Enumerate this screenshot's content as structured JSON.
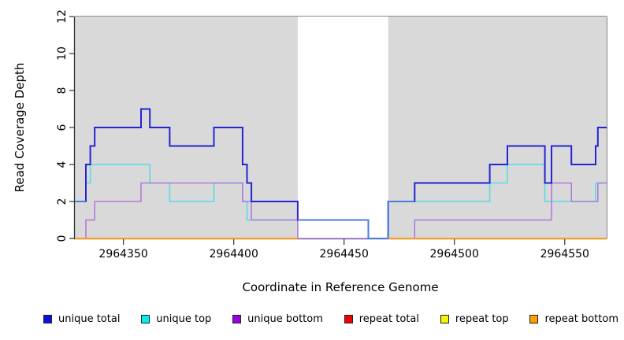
{
  "chart_data": {
    "type": "line",
    "subtype": "step",
    "title": "",
    "xlabel": "Coordinate in Reference Genome",
    "ylabel": "Read Coverage Depth",
    "xlim": [
      2964328,
      2964569
    ],
    "ylim": [
      0,
      12
    ],
    "x_ticks": [
      2964350,
      2964400,
      2964450,
      2964500,
      2964550
    ],
    "y_ticks": [
      0,
      2,
      4,
      6,
      8,
      10,
      12
    ],
    "grid": false,
    "plot_bg_color": "#d9d9d9",
    "highlight_band": {
      "x_start": 2964429,
      "x_end": 2964470,
      "color": "#ffffff"
    },
    "overlap_line_color": "#4b7ae4",
    "axis_color": "#2f2f2f",
    "box_border_color": "#8a8a8a",
    "legend_position": "bottom",
    "draw_order": [
      3,
      4,
      1,
      2,
      0,
      5
    ],
    "series": [
      {
        "name": "unique total",
        "color": "#0d0de0",
        "line_color": "#2424d6",
        "width": 2,
        "start_value": 2,
        "changes": [
          [
            2964333,
            4
          ],
          [
            2964335,
            5
          ],
          [
            2964337,
            6
          ],
          [
            2964358,
            7
          ],
          [
            2964362,
            6
          ],
          [
            2964371,
            5
          ],
          [
            2964391,
            6
          ],
          [
            2964404,
            4
          ],
          [
            2964406,
            3
          ],
          [
            2964408,
            2
          ],
          [
            2964429,
            1
          ],
          [
            2964461,
            0
          ],
          [
            2964470,
            2
          ],
          [
            2964482,
            3
          ],
          [
            2964516,
            4
          ],
          [
            2964524,
            5
          ],
          [
            2964541,
            3
          ],
          [
            2964544,
            5
          ],
          [
            2964553,
            4
          ],
          [
            2964564,
            5
          ],
          [
            2964565,
            6
          ]
        ],
        "gaps": []
      },
      {
        "name": "unique top",
        "color": "#00f0f0",
        "line_color": "#55dce6",
        "width": 1.6,
        "start_value": 2,
        "changes": [
          [
            2964333,
            3
          ],
          [
            2964335,
            4
          ],
          [
            2964362,
            3
          ],
          [
            2964371,
            2
          ],
          [
            2964391,
            3
          ],
          [
            2964404,
            2
          ],
          [
            2964406,
            1
          ],
          [
            2964461,
            0
          ],
          [
            2964470,
            2
          ],
          [
            2964516,
            3
          ],
          [
            2964524,
            4
          ],
          [
            2964541,
            2
          ],
          [
            2964564,
            3
          ]
        ],
        "gaps": []
      },
      {
        "name": "unique bottom",
        "color": "#9a00e0",
        "line_color": "#b27add",
        "width": 1.6,
        "start_value": 0,
        "changes": [
          [
            2964333,
            1
          ],
          [
            2964337,
            2
          ],
          [
            2964358,
            3
          ],
          [
            2964404,
            2
          ],
          [
            2964408,
            1
          ],
          [
            2964429,
            0
          ],
          [
            2964482,
            1
          ],
          [
            2964544,
            3
          ],
          [
            2964553,
            2
          ],
          [
            2964565,
            3
          ]
        ],
        "gaps": []
      },
      {
        "name": "repeat total",
        "color": "#f00000",
        "line_color": "#e81010",
        "width": 1.6,
        "start_value": 0,
        "changes": [],
        "gaps": [
          [
            2964429,
            2964470
          ]
        ]
      },
      {
        "name": "repeat top",
        "color": "#f5f500",
        "line_color": "#f2f200",
        "width": 1.6,
        "start_value": 0,
        "changes": [],
        "gaps": [
          [
            2964429,
            2964470
          ]
        ]
      },
      {
        "name": "repeat bottom",
        "color": "#ffa000",
        "line_color": "#ff9b1a",
        "width": 2,
        "start_value": 0,
        "changes": [],
        "gaps": [
          [
            2964429,
            2964470
          ]
        ]
      }
    ]
  }
}
